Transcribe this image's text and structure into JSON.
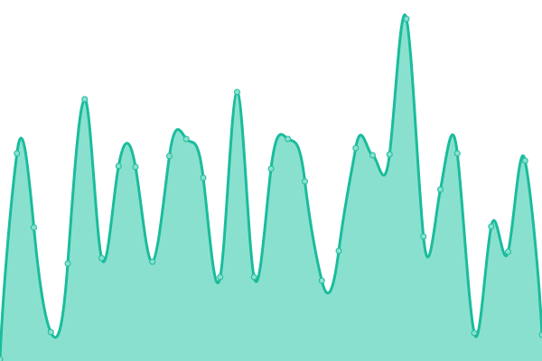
{
  "chart_data": {
    "type": "area",
    "title": "",
    "xlabel": "",
    "ylabel": "",
    "x": [
      0,
      1,
      2,
      3,
      4,
      5,
      6,
      7,
      8,
      9,
      10,
      11,
      12,
      13,
      14,
      15,
      16,
      17,
      18,
      19,
      20,
      21,
      22,
      23,
      24,
      25,
      26,
      27,
      28,
      29,
      30,
      31,
      32
    ],
    "values": [
      2,
      230,
      148,
      32,
      108,
      290,
      114,
      216,
      215,
      110,
      227,
      246,
      203,
      93,
      298,
      93,
      213,
      246,
      199,
      89,
      122,
      236,
      228,
      229,
      379,
      138,
      190,
      230,
      31,
      149,
      121,
      222,
      29
    ],
    "ylim": [
      0,
      400
    ],
    "grid": false,
    "axes_visible": false,
    "smooth": true,
    "markers": true,
    "colors": {
      "line": "#1abc9c",
      "fill": "#8ae0cf",
      "marker_fill": "#8ae0cf"
    }
  }
}
